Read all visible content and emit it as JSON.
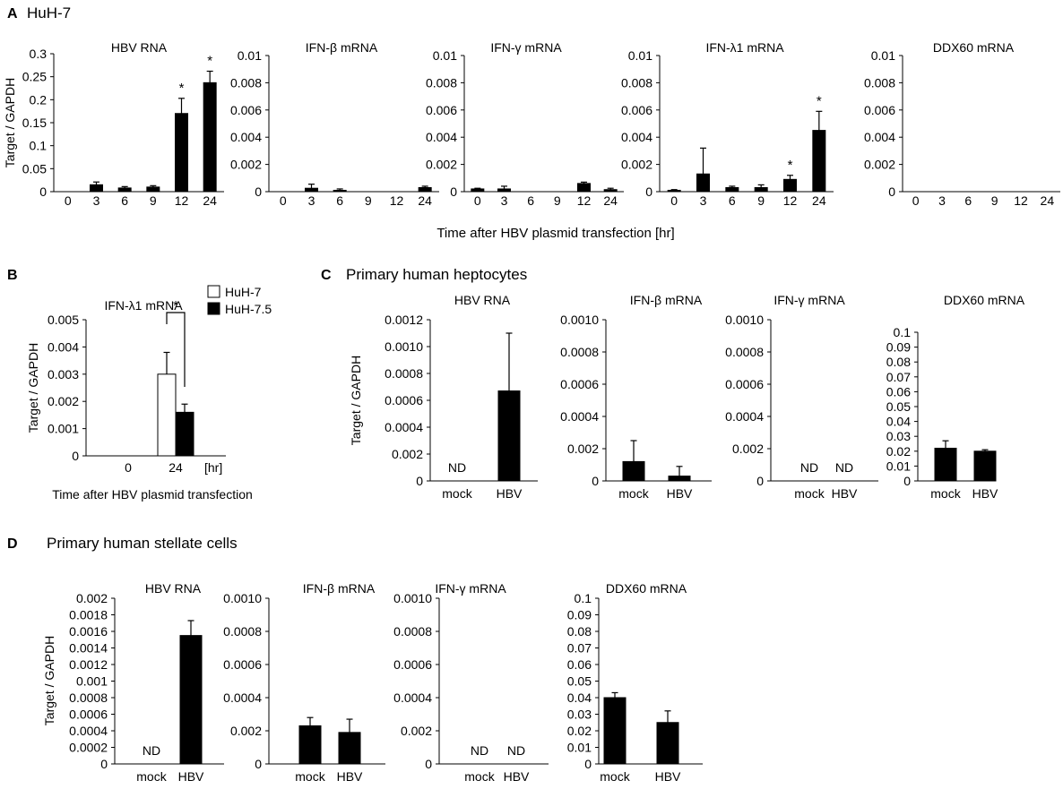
{
  "figure": {
    "panel_a_letter": "A",
    "panel_a_title": "HuH-7",
    "panel_a_xlabel": "Time after HBV plasmid transfection [hr]",
    "panel_b_letter": "B",
    "panel_c_letter": "C",
    "panel_c_title": "Primary human heptocytes",
    "panel_d_letter": "D",
    "panel_d_title": "Primary human stellate cells",
    "ylabel": "Target / GAPDH"
  },
  "chart_data": [
    {
      "id": "A1",
      "panel": "A",
      "type": "bar",
      "title": "HBV RNA",
      "categories": [
        "0",
        "3",
        "6",
        "9",
        "12",
        "24"
      ],
      "values": [
        0,
        0.015,
        0.008,
        0.01,
        0.17,
        0.237
      ],
      "errors": [
        0,
        0.006,
        0.003,
        0.003,
        0.033,
        0.025
      ],
      "ticks": [
        "0",
        "0.05",
        "0.1",
        "0.15",
        "0.2",
        "0.25",
        "0.3"
      ],
      "ylim": [
        0,
        0.3
      ],
      "ylabel": "Target / GAPDH",
      "annotations": [
        {
          "category": "12",
          "label": "*"
        },
        {
          "category": "24",
          "label": "*"
        }
      ]
    },
    {
      "id": "A2",
      "panel": "A",
      "type": "bar",
      "title": "IFN-β mRNA",
      "categories": [
        "0",
        "3",
        "6",
        "9",
        "12",
        "24"
      ],
      "values": [
        0,
        0.00025,
        0.0001,
        0,
        0,
        0.0003
      ],
      "errors": [
        0,
        0.0003,
        0.0001,
        0,
        0,
        0.0001
      ],
      "ticks": [
        "0",
        "0.002",
        "0.004",
        "0.006",
        "0.008",
        "0.01"
      ],
      "ylim": [
        0,
        0.01
      ]
    },
    {
      "id": "A3",
      "panel": "A",
      "type": "bar",
      "title": "IFN-γ mRNA",
      "categories": [
        "0",
        "3",
        "6",
        "9",
        "12",
        "24"
      ],
      "values": [
        0.0002,
        0.0002,
        0,
        0,
        0.0006,
        0.00015
      ],
      "errors": [
        5e-05,
        0.0002,
        0,
        0,
        0.0001,
        0.0001
      ],
      "ticks": [
        "0",
        "0.002",
        "0.004",
        "0.006",
        "0.008",
        "0.01"
      ],
      "ylim": [
        0,
        0.01
      ]
    },
    {
      "id": "A4",
      "panel": "A",
      "type": "bar",
      "title": "IFN-λ1 mRNA",
      "categories": [
        "0",
        "3",
        "6",
        "9",
        "12",
        "24"
      ],
      "values": [
        0.0001,
        0.0013,
        0.0003,
        0.0003,
        0.0009,
        0.0045
      ],
      "errors": [
        5e-05,
        0.0019,
        0.0001,
        0.0002,
        0.0003,
        0.0014
      ],
      "ticks": [
        "0",
        "0.002",
        "0.004",
        "0.006",
        "0.008",
        "0.01"
      ],
      "ylim": [
        0,
        0.01
      ],
      "annotations": [
        {
          "category": "12",
          "label": "*"
        },
        {
          "category": "24",
          "label": "*"
        }
      ]
    },
    {
      "id": "A5",
      "panel": "A",
      "type": "bar",
      "title": "DDX60 mRNA",
      "categories": [
        "0",
        "3",
        "6",
        "9",
        "12",
        "24"
      ],
      "values": [
        0,
        0,
        0,
        0,
        0,
        0
      ],
      "errors": [
        0,
        0,
        0,
        0,
        0,
        0
      ],
      "ticks": [
        "0",
        "0.002",
        "0.004",
        "0.006",
        "0.008",
        "0.01"
      ],
      "ylim": [
        0,
        0.01
      ]
    },
    {
      "id": "B1",
      "panel": "B",
      "type": "bar",
      "title": "IFN-λ1 mRNA",
      "categories": [
        "0",
        "24"
      ],
      "unit": "[hr]",
      "xlabel": "Time after HBV plasmid transfection",
      "ylabel": "Target / GAPDH",
      "series": [
        {
          "name": "HuH-7",
          "color": "#ffffff",
          "values": [
            0,
            0.003
          ],
          "errors": [
            0,
            0.0008
          ]
        },
        {
          "name": "HuH-7.5",
          "color": "#000000",
          "values": [
            0,
            0.0016
          ],
          "errors": [
            0,
            0.0003
          ]
        }
      ],
      "ticks": [
        "0",
        "0.001",
        "0.002",
        "0.003",
        "0.004",
        "0.005"
      ],
      "ylim": [
        0,
        0.005
      ],
      "significance": "*"
    },
    {
      "id": "C1",
      "panel": "C",
      "type": "bar",
      "title": "HBV RNA",
      "categories": [
        "mock",
        "HBV"
      ],
      "values": [
        0,
        0.00067
      ],
      "errors": [
        0,
        0.00043
      ],
      "labels": [
        "ND",
        ""
      ],
      "ticks": [
        "0",
        "0.002",
        "0.0004",
        "0.0006",
        "0.0008",
        "0.0010",
        "0.0012"
      ],
      "ylim": [
        0,
        0.0012
      ],
      "ylabel": "Target / GAPDH"
    },
    {
      "id": "C2",
      "panel": "C",
      "type": "bar",
      "title": "IFN-β mRNA",
      "categories": [
        "mock",
        "HBV"
      ],
      "values": [
        0.00012,
        3e-05
      ],
      "errors": [
        0.00013,
        6e-05
      ],
      "labels": [
        "",
        ""
      ],
      "ticks": [
        "0",
        "0.002",
        "0.0004",
        "0.0006",
        "0.0008",
        "0.0010"
      ],
      "ylim": [
        0,
        0.001
      ]
    },
    {
      "id": "C3",
      "panel": "C",
      "type": "bar",
      "title": "IFN-γ mRNA",
      "categories": [
        "mock",
        "HBV"
      ],
      "values": [
        0,
        0
      ],
      "errors": [
        0,
        0
      ],
      "labels": [
        "ND",
        "ND"
      ],
      "ticks": [
        "0",
        "0.002",
        "0.0004",
        "0.0006",
        "0.0008",
        "0.0010"
      ],
      "ylim": [
        0,
        0.001
      ]
    },
    {
      "id": "C4",
      "panel": "C",
      "type": "bar",
      "title": "DDX60 mRNA",
      "categories": [
        "mock",
        "HBV"
      ],
      "values": [
        0.022,
        0.02
      ],
      "errors": [
        0.005,
        0.001
      ],
      "labels": [
        "",
        ""
      ],
      "ticks": [
        "0",
        "0.01",
        "0.02",
        "0.03",
        "0.04",
        "0.05",
        "0.06",
        "0.07",
        "0.08",
        "0.09",
        "0.1"
      ],
      "ylim": [
        0,
        0.1
      ]
    },
    {
      "id": "D1",
      "panel": "D",
      "type": "bar",
      "title": "HBV RNA",
      "categories": [
        "mock",
        "HBV"
      ],
      "values": [
        0,
        0.00155
      ],
      "errors": [
        0,
        0.00018
      ],
      "labels": [
        "ND",
        ""
      ],
      "ticks": [
        "0",
        "0.0002",
        "0.0004",
        "0.0006",
        "0.0008",
        "0.001",
        "0.0012",
        "0.0014",
        "0.0016",
        "0.0018",
        "0.002"
      ],
      "ylim": [
        0,
        0.002
      ],
      "ylabel": "Target / GAPDH"
    },
    {
      "id": "D2",
      "panel": "D",
      "type": "bar",
      "title": "IFN-β mRNA",
      "categories": [
        "mock",
        "HBV"
      ],
      "values": [
        0.00023,
        0.00019
      ],
      "errors": [
        5e-05,
        8e-05
      ],
      "labels": [
        "",
        ""
      ],
      "ticks": [
        "0",
        "0.002",
        "0.0004",
        "0.0006",
        "0.0008",
        "0.0010"
      ],
      "ylim": [
        0,
        0.001
      ]
    },
    {
      "id": "D3",
      "panel": "D",
      "type": "bar",
      "title": "IFN-γ mRNA",
      "categories": [
        "mock",
        "HBV"
      ],
      "values": [
        0,
        0
      ],
      "errors": [
        0,
        0
      ],
      "labels": [
        "ND",
        "ND"
      ],
      "ticks": [
        "0",
        "0.002",
        "0.0004",
        "0.0006",
        "0.0008",
        "0.0010"
      ],
      "ylim": [
        0,
        0.001
      ]
    },
    {
      "id": "D4",
      "panel": "D",
      "type": "bar",
      "title": "DDX60 mRNA",
      "categories": [
        "mock",
        "HBV"
      ],
      "values": [
        0.04,
        0.025
      ],
      "errors": [
        0.003,
        0.007
      ],
      "labels": [
        "",
        ""
      ],
      "ticks": [
        "0",
        "0.01",
        "0.02",
        "0.03",
        "0.04",
        "0.05",
        "0.06",
        "0.07",
        "0.08",
        "0.09",
        "0.1"
      ],
      "ylim": [
        0,
        0.1
      ]
    }
  ]
}
